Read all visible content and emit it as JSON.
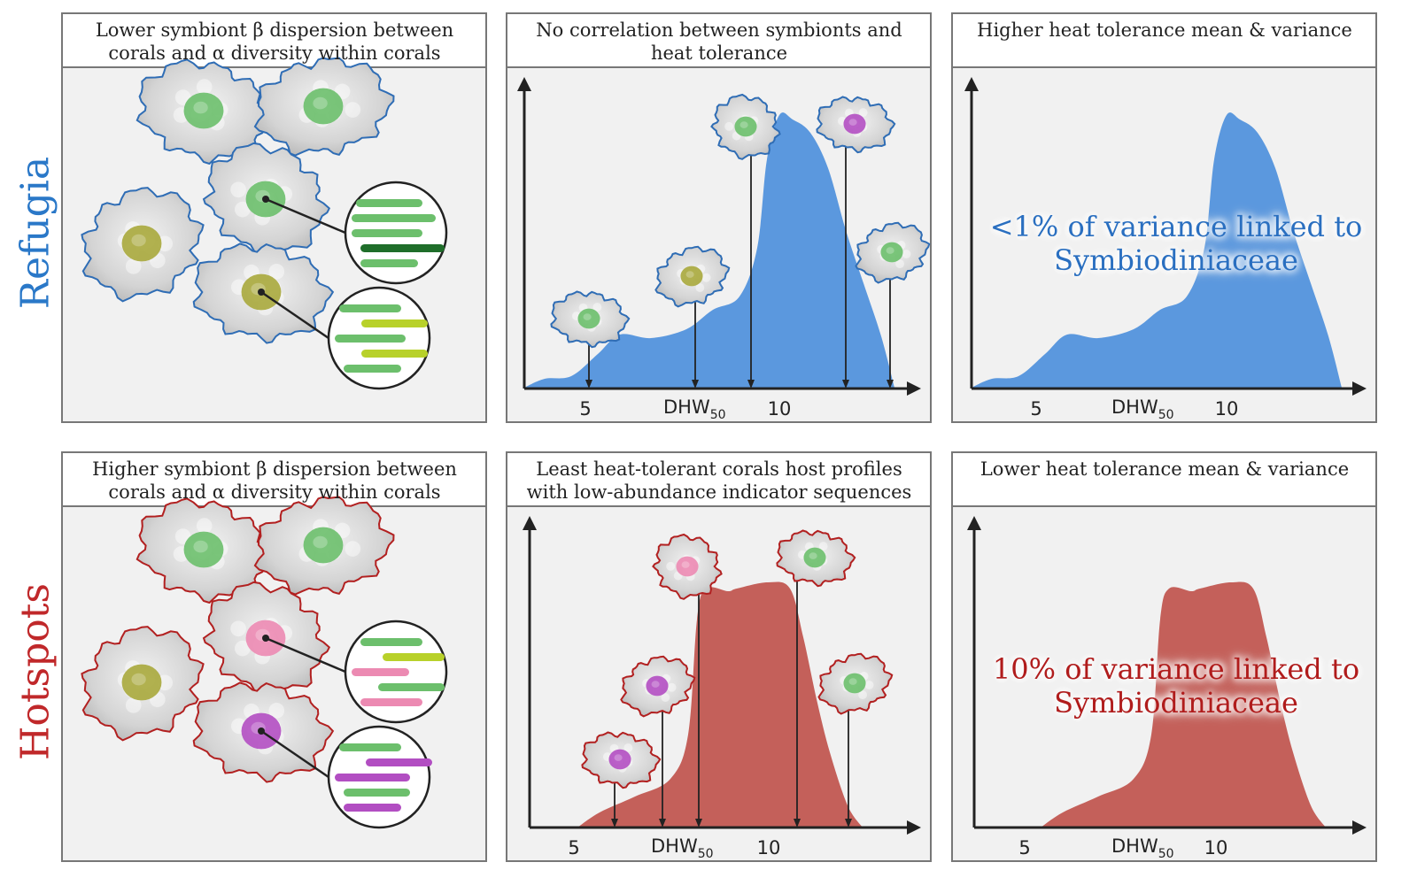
{
  "rows": [
    {
      "label": "Refugia",
      "panels": [
        {
          "title": "Lower symbiont β dispersion between corals and α diversity within corals"
        },
        {
          "title": "No correlation between symbionts and heat tolerance",
          "x_ticks": [
            "5",
            "10"
          ],
          "x_label": "DHW",
          "x_label_subscript": "50"
        },
        {
          "title": "Higher heat tolerance mean & variance",
          "x_ticks": [
            "5",
            "10"
          ],
          "x_label": "DHW",
          "x_label_subscript": "50",
          "annotation": "<1% of variance linked to Symbiodiniaceae"
        }
      ]
    },
    {
      "label": "Hotspots",
      "panels": [
        {
          "title": "Higher symbiont β dispersion between corals and α diversity within corals"
        },
        {
          "title": "Least heat-tolerant corals host profiles with low-abundance indicator sequences",
          "x_ticks": [
            "5",
            "10"
          ],
          "x_label": "DHW",
          "x_label_subscript": "50"
        },
        {
          "title": "Lower heat tolerance mean & variance",
          "x_ticks": [
            "5",
            "10"
          ],
          "x_label": "DHW",
          "x_label_subscript": "50",
          "annotation": "10% of variance linked to Symbiodiniaceae"
        }
      ]
    }
  ]
}
